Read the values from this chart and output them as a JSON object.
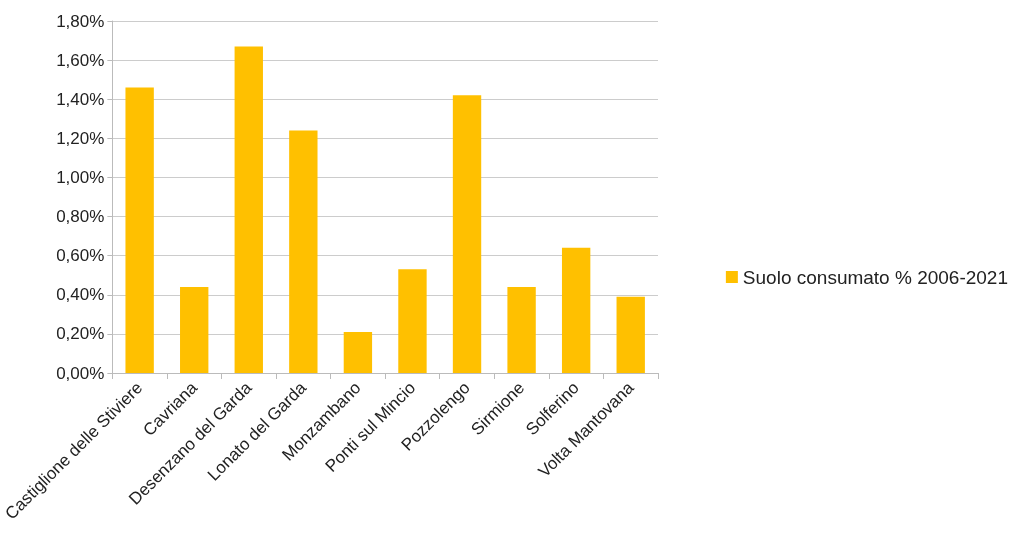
{
  "chart_data": {
    "type": "bar",
    "categories": [
      "Castiglione delle Stiviere",
      "Cavriana",
      "Desenzano del Garda",
      "Lonato del Garda",
      "Monzambano",
      "Ponti sul Mincio",
      "Pozzolengo",
      "Sirmione",
      "Solferino",
      "Volta Mantovana"
    ],
    "series": [
      {
        "name": "Suolo consumato % 2006-2021",
        "color": "#ffc000",
        "values": [
          1.46,
          0.44,
          1.67,
          1.24,
          0.21,
          0.53,
          1.42,
          0.44,
          0.64,
          0.39
        ]
      }
    ],
    "ylim": [
      0,
      1.8
    ],
    "yticks": [
      {
        "value": 0,
        "label": "0,00%"
      },
      {
        "value": 0.2,
        "label": "0,20%"
      },
      {
        "value": 0.4,
        "label": "0,40%"
      },
      {
        "value": 0.6,
        "label": "0,60%"
      },
      {
        "value": 0.8,
        "label": "0,80%"
      },
      {
        "value": 1.0,
        "label": "1,00%"
      },
      {
        "value": 1.2,
        "label": "1,20%"
      },
      {
        "value": 1.4,
        "label": "1,40%"
      },
      {
        "value": 1.6,
        "label": "1,60%"
      },
      {
        "value": 1.8,
        "label": "1,80%"
      }
    ],
    "grid": true,
    "legend": "right"
  }
}
